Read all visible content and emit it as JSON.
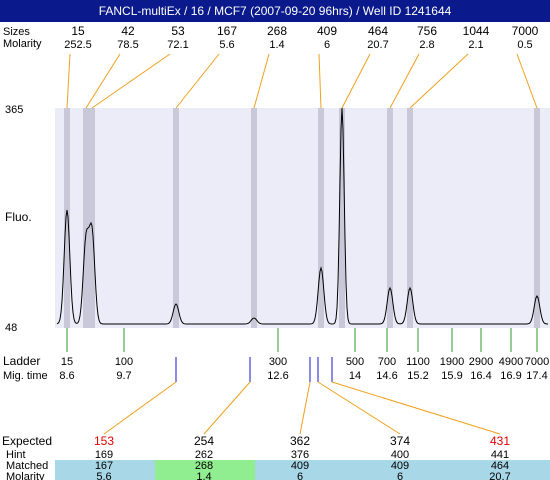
{
  "header": {
    "title": "FANCL-multiEx / 16 / MCF7 (2007-09-20 96hrs) / Well ID 1241644"
  },
  "peaks": {
    "size_label": "Sizes",
    "molarity_label": "Molarity",
    "items": [
      {
        "size": 15,
        "molarity": 252.5
      },
      {
        "size": 42,
        "molarity": 78.5
      },
      {
        "size": 53,
        "molarity": 72.1
      },
      {
        "size": 167,
        "molarity": 5.6
      },
      {
        "size": 268,
        "molarity": 1.4
      },
      {
        "size": 409,
        "molarity": 6
      },
      {
        "size": 464,
        "molarity": 20.7
      },
      {
        "size": 756,
        "molarity": 2.8
      },
      {
        "size": 1044,
        "molarity": 2.1
      },
      {
        "size": 7000,
        "molarity": 0.5
      }
    ]
  },
  "plot": {
    "y_label": "Fluo.",
    "y_top": 365,
    "y_bottom": 48
  },
  "ladder": {
    "label": "Ladder",
    "time_label": "Mig. time",
    "items": [
      {
        "size": 15,
        "time": 8.6
      },
      {
        "size": 100,
        "time": 9.7
      },
      {
        "size": 300,
        "time": 12.6
      },
      {
        "size": 500,
        "time": 14
      },
      {
        "size": 700,
        "time": 14.6
      },
      {
        "size": 1100,
        "time": 15.2
      },
      {
        "size": 1900,
        "time": 15.9
      },
      {
        "size": 2900,
        "time": 16.4
      },
      {
        "size": 4900,
        "time": 16.9
      },
      {
        "size": 7000,
        "time": 17.4
      }
    ]
  },
  "expected": {
    "labels": [
      "Expected",
      "Hint",
      "Matched",
      "Molarity"
    ],
    "columns": [
      {
        "expected": 153,
        "hint": 169,
        "matched": 167,
        "molarity": 5.6,
        "color": "#e00000"
      },
      {
        "expected": 254,
        "hint": 262,
        "matched": 268,
        "molarity": 1.4,
        "color": "#000000"
      },
      {
        "expected": 362,
        "hint": 376,
        "matched": 409,
        "molarity": 6,
        "color": "#000000"
      },
      {
        "expected": 374,
        "hint": 400,
        "matched": 409,
        "molarity": 6,
        "color": "#000000"
      },
      {
        "expected": 431,
        "hint": 441,
        "matched": 464,
        "molarity": 20.7,
        "color": "#e00000"
      }
    ]
  }
}
